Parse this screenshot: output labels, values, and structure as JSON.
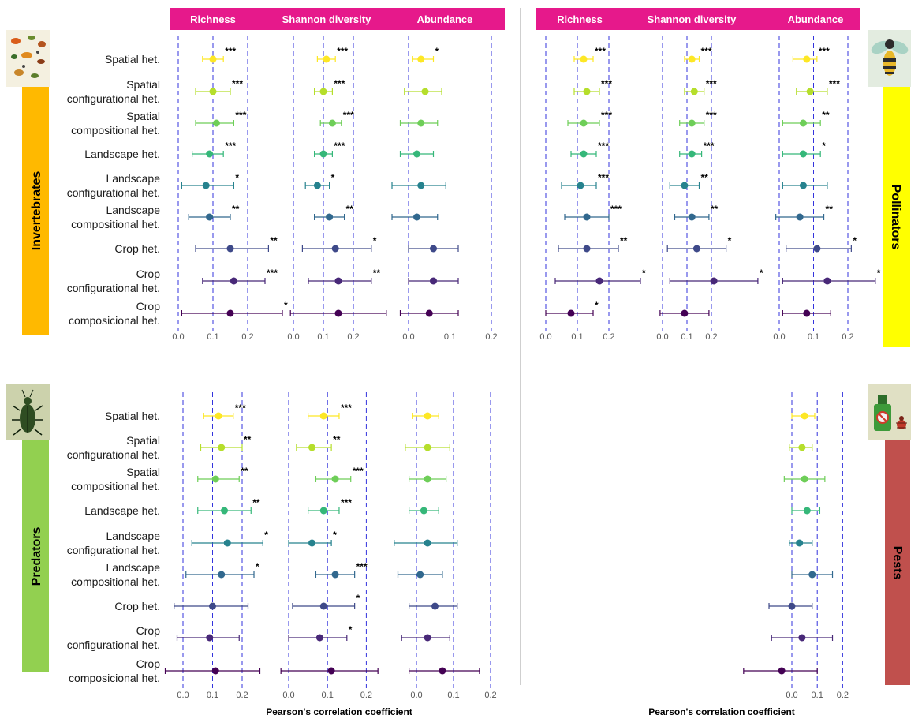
{
  "headers": [
    "Richness",
    "Shannon diversity",
    "Abundance"
  ],
  "row_labels": [
    [
      "Spatial het."
    ],
    [
      "Spatial",
      "configurational het."
    ],
    [
      "Spatial",
      "compositional het."
    ],
    [
      "Landscape het."
    ],
    [
      "Landscape",
      "configurational het."
    ],
    [
      "Landscape",
      "compositional het."
    ],
    [
      "Crop het."
    ],
    [
      "Crop",
      "configurational het."
    ],
    [
      "Crop",
      "composicional het."
    ]
  ],
  "group_labels": {
    "invertebrates": "Invertebrates",
    "pollinators": "Pollinators",
    "predators": "Predators",
    "pests": "Pests"
  },
  "x_axis_title": "Pearson's correlation coefficient",
  "colors": {
    "header_bg": "#e6198b",
    "invertebrates": "#ffb900",
    "pollinators": "#ffff00",
    "predators": "#92d050",
    "pests": "#c0504d",
    "refline": "#3333dd",
    "row_colors": [
      "#fde725",
      "#b5de2b",
      "#6ece58",
      "#35b779",
      "#1f9e89",
      "#26828e",
      "#31688e",
      "#3e4989",
      "#482878",
      "#440154"
    ]
  },
  "icons": {
    "invertebrates": "insect-collection-icon",
    "pollinators": "bee-icon",
    "predators": "beetle-icon",
    "pests": "pesticide-spray-icon"
  },
  "chart_data": [
    {
      "name": "Invertebrates",
      "type": "scatter",
      "subplots": [
        {
          "title": "Richness",
          "xticks": [
            0.0,
            0.1,
            0.2
          ],
          "estimates": [
            0.1,
            0.1,
            0.11,
            0.09,
            0.08,
            0.09,
            0.15,
            0.16,
            0.15
          ],
          "ci_low": [
            0.07,
            0.05,
            0.05,
            0.04,
            0.01,
            0.03,
            0.05,
            0.07,
            0.01
          ],
          "ci_high": [
            0.13,
            0.15,
            0.16,
            0.13,
            0.16,
            0.15,
            0.26,
            0.25,
            0.3
          ],
          "significance": [
            "***",
            "***",
            "***",
            "***",
            "*",
            "**",
            "**",
            "***",
            "*"
          ]
        },
        {
          "title": "Shannon diversity",
          "xticks": [
            0.0,
            0.1,
            0.2
          ],
          "estimates": [
            0.11,
            0.1,
            0.13,
            0.1,
            0.08,
            0.12,
            0.14,
            0.15,
            0.15
          ],
          "ci_low": [
            0.08,
            0.07,
            0.09,
            0.07,
            0.04,
            0.07,
            0.03,
            0.05,
            -0.01
          ],
          "ci_high": [
            0.14,
            0.13,
            0.16,
            0.13,
            0.12,
            0.17,
            0.26,
            0.26,
            0.31
          ],
          "significance": [
            "***",
            "***",
            "***",
            "***",
            "*",
            "**",
            "*",
            "**",
            ""
          ]
        },
        {
          "title": "Abundance",
          "xticks": [
            0.0,
            0.1,
            0.2
          ],
          "estimates": [
            0.03,
            0.04,
            0.03,
            0.02,
            0.03,
            0.02,
            0.06,
            0.06,
            0.05
          ],
          "ci_low": [
            0.01,
            -0.01,
            -0.02,
            -0.02,
            -0.04,
            -0.04,
            0.0,
            0.0,
            -0.02
          ],
          "ci_high": [
            0.06,
            0.08,
            0.07,
            0.06,
            0.09,
            0.07,
            0.12,
            0.12,
            0.12
          ],
          "significance": [
            "*",
            "",
            "",
            "",
            "",
            "",
            "",
            "",
            ""
          ]
        }
      ]
    },
    {
      "name": "Pollinators",
      "type": "scatter",
      "subplots": [
        {
          "title": "Richness",
          "xticks": [
            0.0,
            0.1,
            0.2
          ],
          "estimates": [
            0.12,
            0.13,
            0.12,
            0.12,
            0.11,
            0.13,
            0.13,
            0.17,
            0.08
          ],
          "ci_low": [
            0.09,
            0.09,
            0.07,
            0.08,
            0.05,
            0.06,
            0.04,
            0.03,
            0.0
          ],
          "ci_high": [
            0.15,
            0.17,
            0.17,
            0.16,
            0.16,
            0.2,
            0.23,
            0.3,
            0.15
          ],
          "significance": [
            "***",
            "***",
            "***",
            "***",
            "***",
            "***",
            "**",
            "*",
            "*"
          ]
        },
        {
          "title": "Shannon diversity",
          "xticks": [
            0.0,
            0.1,
            0.2
          ],
          "estimates": [
            0.12,
            0.13,
            0.12,
            0.12,
            0.09,
            0.12,
            0.14,
            0.21,
            0.09
          ],
          "ci_low": [
            0.09,
            0.09,
            0.07,
            0.07,
            0.03,
            0.05,
            0.02,
            0.03,
            -0.01
          ],
          "ci_high": [
            0.15,
            0.17,
            0.17,
            0.16,
            0.15,
            0.19,
            0.26,
            0.39,
            0.19
          ],
          "significance": [
            "***",
            "***",
            "***",
            "***",
            "**",
            "**",
            "*",
            "*",
            ""
          ]
        },
        {
          "title": "Abundance",
          "xticks": [
            0.0,
            0.1,
            0.2
          ],
          "estimates": [
            0.08,
            0.09,
            0.07,
            0.07,
            0.07,
            0.06,
            0.11,
            0.14,
            0.08
          ],
          "ci_low": [
            0.04,
            0.05,
            0.01,
            0.01,
            0.01,
            -0.01,
            0.02,
            0.01,
            0.01
          ],
          "ci_high": [
            0.11,
            0.14,
            0.12,
            0.12,
            0.14,
            0.13,
            0.21,
            0.28,
            0.15
          ],
          "significance": [
            "***",
            "***",
            "**",
            "*",
            "",
            "**",
            "*",
            "*",
            ""
          ]
        }
      ]
    },
    {
      "name": "Predators",
      "type": "scatter",
      "subplots": [
        {
          "title": "Richness",
          "xticks": [
            0.0,
            0.1,
            0.2
          ],
          "estimates": [
            0.12,
            0.13,
            0.11,
            0.14,
            0.15,
            0.13,
            0.1,
            0.09,
            0.11
          ],
          "ci_low": [
            0.07,
            0.06,
            0.05,
            0.05,
            0.03,
            0.01,
            -0.03,
            -0.02,
            -0.06
          ],
          "ci_high": [
            0.17,
            0.2,
            0.19,
            0.23,
            0.27,
            0.24,
            0.22,
            0.19,
            0.26
          ],
          "significance": [
            "***",
            "**",
            "**",
            "**",
            "*",
            "*",
            "",
            "",
            ""
          ]
        },
        {
          "title": "Shannon diversity",
          "xticks": [
            0.0,
            0.1,
            0.2
          ],
          "estimates": [
            0.09,
            0.06,
            0.12,
            0.09,
            0.06,
            0.12,
            0.09,
            0.08,
            0.11
          ],
          "ci_low": [
            0.05,
            0.02,
            0.07,
            0.05,
            0.0,
            0.07,
            0.01,
            0.0,
            -0.02
          ],
          "ci_high": [
            0.13,
            0.11,
            0.16,
            0.13,
            0.11,
            0.17,
            0.17,
            0.15,
            0.23
          ],
          "significance": [
            "***",
            "**",
            "***",
            "***",
            "*",
            "***",
            "*",
            "*",
            ""
          ]
        },
        {
          "title": "Abundance",
          "xticks": [
            0.0,
            0.1,
            0.2
          ],
          "estimates": [
            0.03,
            0.03,
            0.03,
            0.02,
            0.03,
            0.01,
            0.05,
            0.03,
            0.07
          ],
          "ci_low": [
            -0.01,
            -0.03,
            -0.02,
            -0.02,
            -0.06,
            -0.05,
            -0.02,
            -0.04,
            -0.02
          ],
          "ci_high": [
            0.06,
            0.09,
            0.08,
            0.06,
            0.11,
            0.07,
            0.11,
            0.09,
            0.17
          ],
          "significance": [
            "",
            "",
            "",
            "",
            "",
            "",
            "",
            "",
            ""
          ]
        }
      ]
    },
    {
      "name": "Pests",
      "type": "scatter",
      "subplots": [
        {
          "title": "",
          "xticks": [
            0.0,
            0.1,
            0.2
          ],
          "estimates": [
            0.05,
            0.04,
            0.05,
            0.06,
            0.03,
            0.08,
            0.0,
            0.04,
            -0.04
          ],
          "ci_low": [
            0.0,
            -0.01,
            -0.03,
            0.0,
            -0.01,
            0.0,
            -0.09,
            -0.08,
            -0.19
          ],
          "ci_high": [
            0.09,
            0.08,
            0.13,
            0.11,
            0.08,
            0.16,
            0.08,
            0.16,
            0.1
          ],
          "significance": [
            "",
            "",
            "",
            "",
            "",
            "",
            "",
            "",
            ""
          ]
        }
      ]
    }
  ]
}
